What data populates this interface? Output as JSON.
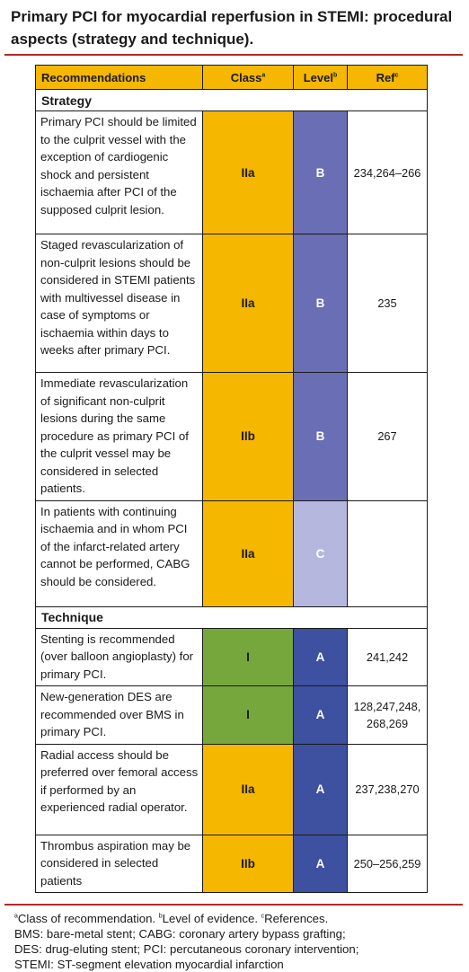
{
  "title": "Primary PCI for myocardial reperfusion in STEMI: procedural aspects (strategy and technique).",
  "header": {
    "recommendations": "Recommendations",
    "class": "Class",
    "class_sup": "a",
    "level": "Level",
    "level_sup": "b",
    "ref": "Ref",
    "ref_sup": "c"
  },
  "sections": {
    "strategy": "Strategy",
    "technique": "Technique"
  },
  "rows": [
    {
      "text": "Primary PCI should be limited to the culprit vessel with the exception of cardiogenic shock and persistent ischaemia after PCI of the supposed culprit lesion.",
      "class": "IIa",
      "level": "B",
      "ref": "234,264–266"
    },
    {
      "text": "Staged revascularization of non-culprit lesions should be considered in STEMI patients with multivessel disease in case of symptoms or ischaemia within days to weeks after primary PCI.",
      "class": "IIa",
      "level": "B",
      "ref": "235"
    },
    {
      "text": "Immediate revascularization of significant non-culprit lesions during the same procedure as primary PCI of the culprit vessel may be considered in selected patients.",
      "class": "IIb",
      "level": "B",
      "ref": "267"
    },
    {
      "text": "In patients with continuing ischaemia and in whom PCI of the infarct-related artery cannot be performed, CABG should be considered.",
      "class": "IIa",
      "level": "C",
      "ref": ""
    },
    {
      "text": "Stenting is recommended (over balloon angioplasty) for primary PCI.",
      "class": "I",
      "level": "A",
      "ref": "241,242"
    },
    {
      "text": "New-generation DES are recommended over BMS in primary PCI.",
      "class": "I",
      "level": "A",
      "ref": "128,247,248, 268,269"
    },
    {
      "text": "Radial access should be preferred over femoral access if performed by an experienced radial operator.",
      "class": "IIa",
      "level": "A",
      "ref": "237,238,270"
    },
    {
      "text": "Thrombus aspiration may be considered in selected patients",
      "class": "IIb",
      "level": "A",
      "ref": "250–256,259"
    }
  ],
  "footnotes": {
    "a_mark": "a",
    "a": "Class of recommendation. ",
    "b_mark": "b",
    "b": "Level of evidence. ",
    "c_mark": "c",
    "c": "References.",
    "line2": "BMS: bare-metal stent; CABG: coronary artery bypass grafting;",
    "line3": "DES: drug-eluting stent; PCI: percutaneous coronary intervention;",
    "line4": "STEMI: ST-segment elevation myocardial infarction"
  },
  "colors": {
    "rule": "#b3282d",
    "header_bg": "#f5b700",
    "class_I": "#76a73c",
    "class_II": "#f5b700",
    "level_A": "#3e50a0",
    "level_B": "#6a6eb4",
    "level_C": "#b5b7de"
  }
}
